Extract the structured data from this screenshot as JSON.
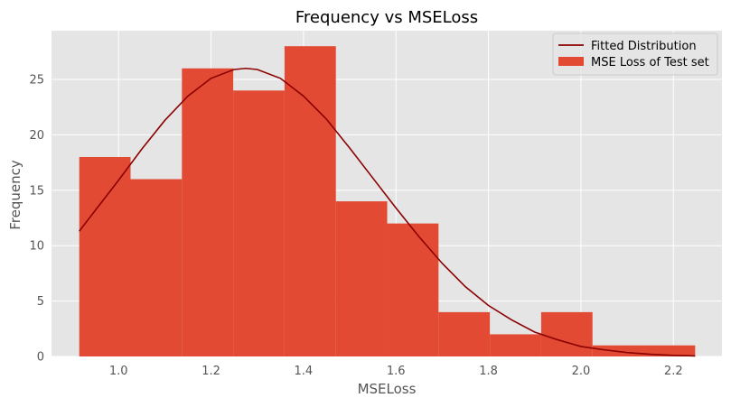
{
  "chart_data": {
    "type": "bar",
    "title": "Frequency vs MSELoss",
    "xlabel": "MSELoss",
    "ylabel": "Frequency",
    "grid": true,
    "legend_position": "top-right",
    "xlim": [
      0.855,
      2.305
    ],
    "ylim": [
      0,
      29.4
    ],
    "x_ticks": [
      1.0,
      1.2,
      1.4,
      1.6,
      1.8,
      2.0,
      2.2
    ],
    "x_tick_labels": [
      "1.0",
      "1.2",
      "1.4",
      "1.6",
      "1.8",
      "2.0",
      "2.2"
    ],
    "y_ticks": [
      0,
      5,
      10,
      15,
      20,
      25
    ],
    "y_tick_labels": [
      "0",
      "5",
      "10",
      "15",
      "20",
      "25"
    ],
    "histogram": {
      "name": "MSE Loss of Test set",
      "color": "#E24A33",
      "bins": [
        {
          "x0": 0.915,
          "x1": 1.026,
          "count": 18
        },
        {
          "x0": 1.026,
          "x1": 1.137,
          "count": 16
        },
        {
          "x0": 1.137,
          "x1": 1.248,
          "count": 26
        },
        {
          "x0": 1.248,
          "x1": 1.359,
          "count": 24
        },
        {
          "x0": 1.359,
          "x1": 1.47,
          "count": 28
        },
        {
          "x0": 1.47,
          "x1": 1.581,
          "count": 14
        },
        {
          "x0": 1.581,
          "x1": 1.692,
          "count": 12
        },
        {
          "x0": 1.692,
          "x1": 1.803,
          "count": 4
        },
        {
          "x0": 1.803,
          "x1": 1.914,
          "count": 2
        },
        {
          "x0": 1.914,
          "x1": 2.025,
          "count": 4
        },
        {
          "x0": 2.025,
          "x1": 2.136,
          "count": 1
        },
        {
          "x0": 2.136,
          "x1": 2.247,
          "count": 1
        }
      ]
    },
    "fitted_line": {
      "name": "Fitted Distribution",
      "color": "#8B0000",
      "x": [
        0.915,
        0.95,
        1.0,
        1.05,
        1.1,
        1.15,
        1.2,
        1.25,
        1.275,
        1.3,
        1.35,
        1.4,
        1.45,
        1.5,
        1.55,
        1.6,
        1.65,
        1.7,
        1.75,
        1.8,
        1.85,
        1.9,
        1.95,
        2.0,
        2.05,
        2.1,
        2.15,
        2.2,
        2.247
      ],
      "y": [
        11.3,
        13.2,
        15.9,
        18.7,
        21.3,
        23.5,
        25.1,
        25.9,
        26.0,
        25.9,
        25.1,
        23.5,
        21.4,
        18.8,
        16.1,
        13.4,
        10.8,
        8.4,
        6.3,
        4.6,
        3.3,
        2.2,
        1.5,
        0.9,
        0.6,
        0.35,
        0.2,
        0.1,
        0.05
      ]
    },
    "legend": [
      {
        "label": "Fitted Distribution",
        "kind": "line",
        "color": "#8B0000"
      },
      {
        "label": "MSE Loss of Test set",
        "kind": "patch",
        "color": "#E24A33"
      }
    ],
    "style": {
      "plot_bg": "#E5E5E5",
      "grid_color": "#FFFFFF"
    }
  }
}
